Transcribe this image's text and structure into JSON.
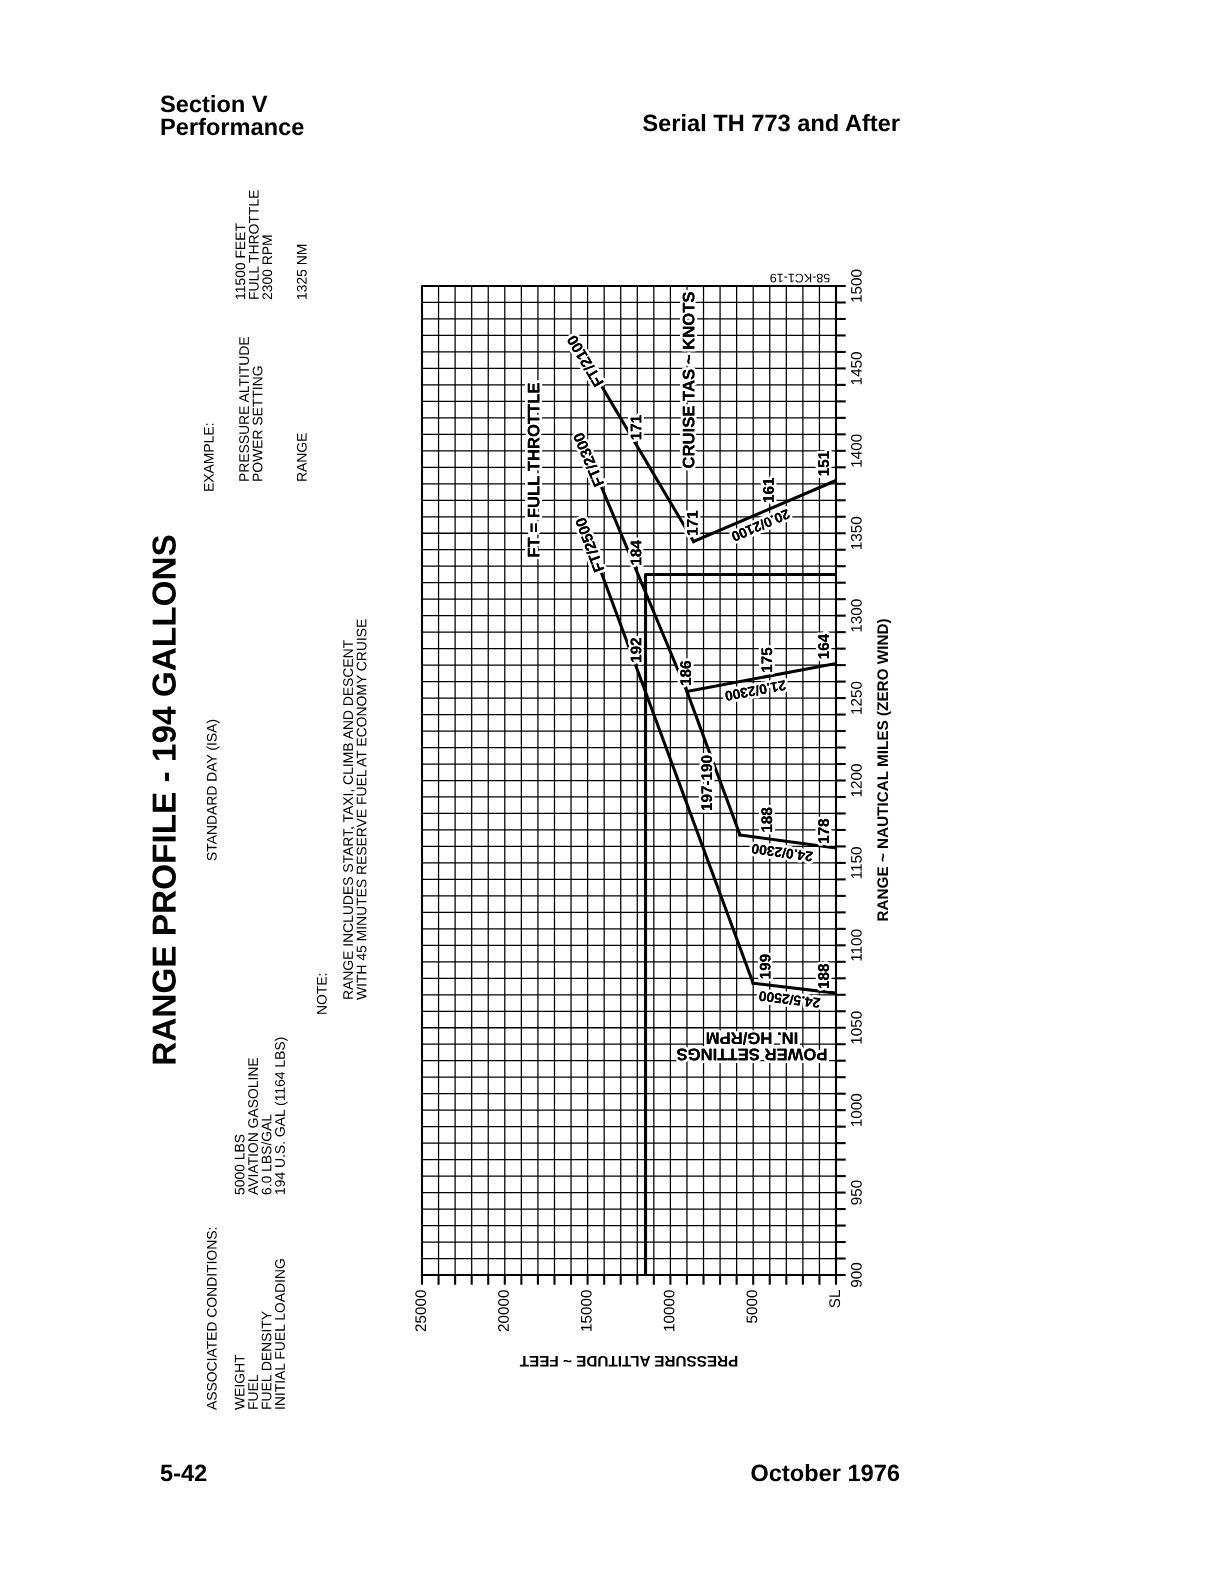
{
  "chart_data": {
    "type": "line",
    "title": "RANGE PROFILE - 194 GALLONS",
    "subtitle": "STANDARD DAY (ISA)",
    "xlabel": "PRESSURE ALTITUDE ~ FEET",
    "ylabel": "RANGE ~ NAUTICAL MILES (ZERO WIND)",
    "xlim": [
      25000,
      0
    ],
    "xticks": [
      25000,
      {
        "value": 24000,
        "label": null
      },
      {
        "value": 23000,
        "label": null
      },
      {
        "value": 22000,
        "label": null
      },
      {
        "value": 21000,
        "label": null
      },
      20000,
      {
        "value": 19000,
        "label": null
      },
      {
        "value": 18000,
        "label": null
      },
      {
        "value": 17000,
        "label": null
      },
      {
        "value": 16000,
        "label": null
      },
      15000,
      {
        "value": 14000,
        "label": null
      },
      {
        "value": 13000,
        "label": null
      },
      {
        "value": 12000,
        "label": null
      },
      {
        "value": 11000,
        "label": null
      },
      10000,
      {
        "value": 9000,
        "label": null
      },
      {
        "value": 8000,
        "label": null
      },
      {
        "value": 7000,
        "label": null
      },
      {
        "value": 6000,
        "label": null
      },
      5000,
      {
        "value": 4000,
        "label": null
      },
      {
        "value": 3000,
        "label": null
      },
      {
        "value": 2000,
        "label": null
      },
      {
        "value": 1000,
        "label": null
      },
      {
        "value": 0,
        "label": "SL"
      }
    ],
    "ylim": [
      900,
      1500
    ],
    "yticks": [
      900,
      {
        "value": 910,
        "label": null
      },
      {
        "value": 920,
        "label": null
      },
      {
        "value": 930,
        "label": null
      },
      {
        "value": 940,
        "label": null
      },
      950,
      {
        "value": 960,
        "label": null
      },
      {
        "value": 970,
        "label": null
      },
      {
        "value": 980,
        "label": null
      },
      {
        "value": 990,
        "label": null
      },
      1000,
      {
        "value": 1010,
        "label": null
      },
      {
        "value": 1020,
        "label": null
      },
      {
        "value": 1030,
        "label": null
      },
      {
        "value": 1040,
        "label": null
      },
      1050,
      {
        "value": 1060,
        "label": null
      },
      {
        "value": 1070,
        "label": null
      },
      {
        "value": 1080,
        "label": null
      },
      {
        "value": 1090,
        "label": null
      },
      1100,
      {
        "value": 1110,
        "label": null
      },
      {
        "value": 1120,
        "label": null
      },
      {
        "value": 1130,
        "label": null
      },
      {
        "value": 1140,
        "label": null
      },
      1150,
      {
        "value": 1160,
        "label": null
      },
      {
        "value": 1170,
        "label": null
      },
      {
        "value": 1180,
        "label": null
      },
      {
        "value": 1190,
        "label": null
      },
      1200,
      {
        "value": 1210,
        "label": null
      },
      {
        "value": 1220,
        "label": null
      },
      {
        "value": 1230,
        "label": null
      },
      {
        "value": 1240,
        "label": null
      },
      1250,
      {
        "value": 1260,
        "label": null
      },
      {
        "value": 1270,
        "label": null
      },
      {
        "value": 1280,
        "label": null
      },
      {
        "value": 1290,
        "label": null
      },
      1300,
      {
        "value": 1310,
        "label": null
      },
      {
        "value": 1320,
        "label": null
      },
      {
        "value": 1330,
        "label": null
      },
      {
        "value": 1340,
        "label": null
      },
      1350,
      {
        "value": 1360,
        "label": null
      },
      {
        "value": 1370,
        "label": null
      },
      {
        "value": 1380,
        "label": null
      },
      {
        "value": 1390,
        "label": null
      },
      1400,
      {
        "value": 1410,
        "label": null
      },
      {
        "value": 1420,
        "label": null
      },
      {
        "value": 1430,
        "label": null
      },
      {
        "value": 1440,
        "label": null
      },
      1450,
      {
        "value": 1460,
        "label": null
      },
      {
        "value": 1470,
        "label": null
      },
      {
        "value": 1480,
        "label": null
      },
      {
        "value": 1490,
        "label": null
      },
      1500
    ],
    "grid": true,
    "series": [
      {
        "name": "FT/2100",
        "color": "#000000",
        "x": [
          14200,
          8600
        ],
        "values": [
          1440,
          1345
        ]
      },
      {
        "name": "20.0/2100",
        "color": "#000000",
        "x": [
          8600,
          0
        ],
        "values": [
          1345,
          1382
        ]
      },
      {
        "name": "FT/2300",
        "color": "#000000",
        "x": [
          14200,
          9000,
          5800
        ],
        "values": [
          1379,
          1254,
          1167
        ]
      },
      {
        "name": "21.0/2300",
        "color": "#000000",
        "x": [
          9000,
          0
        ],
        "values": [
          1254,
          1271
        ]
      },
      {
        "name": "24.0/2300",
        "color": "#000000",
        "x": [
          5800,
          0
        ],
        "values": [
          1167,
          1159
        ]
      },
      {
        "name": "FT/2500",
        "color": "#000000",
        "x": [
          14200,
          5000
        ],
        "values": [
          1327,
          1077
        ]
      },
      {
        "name": "24.5/2500",
        "color": "#000000",
        "x": [
          5000,
          0
        ],
        "values": [
          1077,
          1071
        ]
      },
      {
        "color": "#000000",
        "x": [
          11500,
          11500,
          0
        ],
        "values": [
          900,
          1325,
          1325
        ]
      }
    ],
    "annotations": [
      {
        "text": "171",
        "x": 12000,
        "y": 1403
      },
      {
        "text": "171",
        "x": 8600,
        "y": 1345
      },
      {
        "text": "161",
        "x": 4000,
        "y": 1365
      },
      {
        "text": "151",
        "x": 0,
        "y": 1382
      },
      {
        "text": "184",
        "x": 12000,
        "y": 1327
      },
      {
        "text": "186",
        "x": 9000,
        "y": 1254
      },
      {
        "text": "175",
        "x": 4100,
        "y": 1262
      },
      {
        "text": "164",
        "x": 0,
        "y": 1271
      },
      {
        "text": "192",
        "x": 12000,
        "y": 1268
      },
      {
        "text": "188",
        "x": 4100,
        "y": 1165
      },
      {
        "text": "178",
        "x": 0,
        "y": 1159
      },
      {
        "text": "199",
        "x": 4200,
        "y": 1076
      },
      {
        "text": "188",
        "x": 0,
        "y": 1071
      },
      "FT = FULL THROTTLE",
      "CRUISE TAS ~ KNOTS",
      "POWER SETTINGS\nIN. HG/RPM",
      "58-KC1-19",
      "Section V\nPerformance",
      "Serial TH 773 and After",
      "5-42",
      "October 1976",
      "ASSOCIATED CONDITIONS:",
      "WEIGHT\nFUEL\nFUEL DENSITY\nINITIAL FUEL LOADING",
      "5000 LBS\nAVIATION GASOLINE\n6.0 LBS/GAL\n194 U.S. GAL (1164 LBS)",
      "NOTE:",
      "RANGE INCLUDES START, TAXI, CLIMB AND DESCENT\nWITH 45 MINUTES RESERVE FUEL AT ECONOMY CRUISE",
      "EXAMPLE:",
      "PRESSURE ALTITUDE\nPOWER SETTING",
      "11500 FEET\nFULL THROTTLE\n2300 RPM",
      "RANGE",
      "1325 NM",
      "197-190"
    ]
  }
}
